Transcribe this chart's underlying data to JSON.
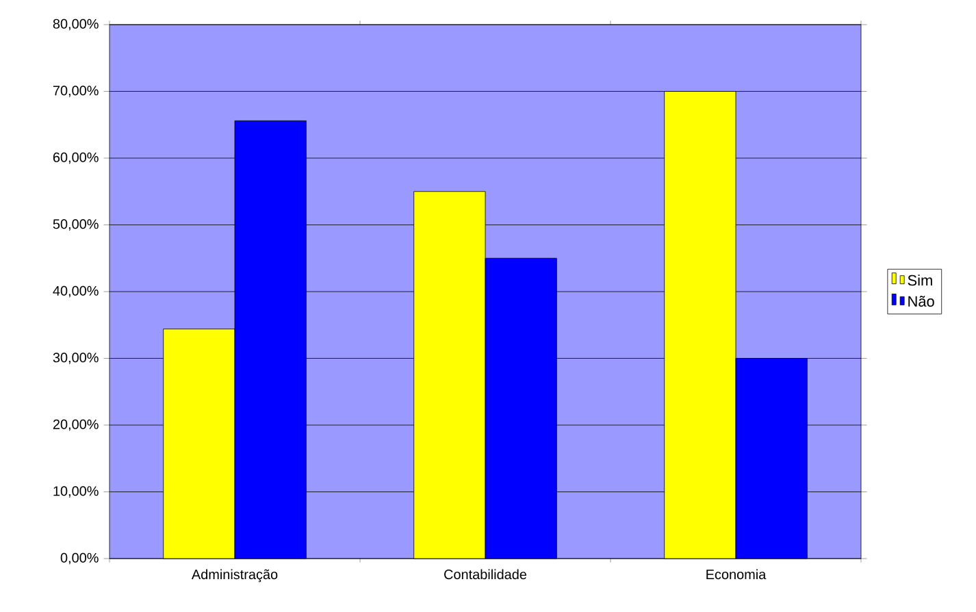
{
  "chart_data": {
    "type": "bar",
    "categories": [
      "Administração",
      "Contabilidade",
      "Economia"
    ],
    "series": [
      {
        "name": "Sim",
        "color": "#ffff00",
        "values": [
          34.4,
          55,
          70
        ]
      },
      {
        "name": "Não",
        "color": "#0000ff",
        "values": [
          65.6,
          45,
          30
        ]
      }
    ],
    "ylim": [
      0,
      80
    ],
    "yticks": [
      {
        "value": 0,
        "label": "0,00%"
      },
      {
        "value": 10,
        "label": "10,00%"
      },
      {
        "value": 20,
        "label": "20,00%"
      },
      {
        "value": 30,
        "label": "30,00%"
      },
      {
        "value": 40,
        "label": "40,00%"
      },
      {
        "value": 50,
        "label": "50,00%"
      },
      {
        "value": 60,
        "label": "60,00%"
      },
      {
        "value": 70,
        "label": "70,00%"
      },
      {
        "value": 80,
        "label": "80,00%"
      }
    ],
    "grid": "y",
    "legend": "right"
  }
}
